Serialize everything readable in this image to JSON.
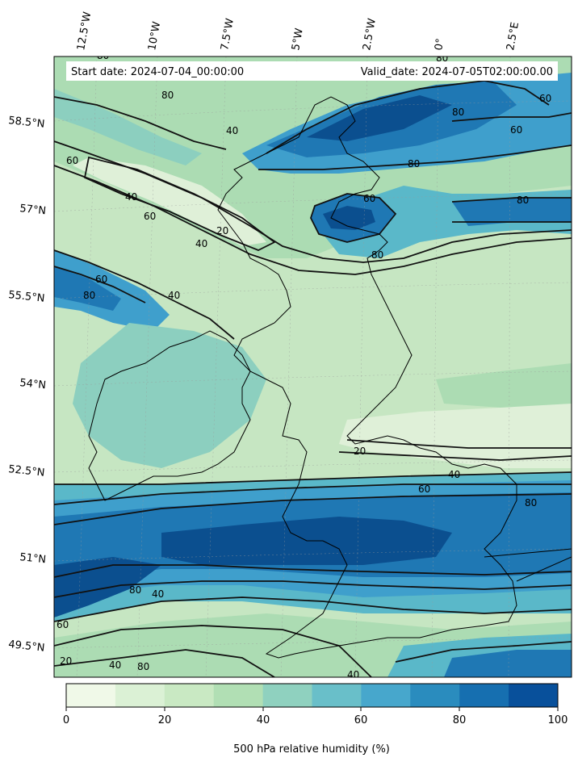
{
  "map": {
    "header": {
      "start_date": "Start date: 2024-07-04_00:00:00",
      "valid_date": "Valid_date: 2024-07-05T02:00:00.00"
    },
    "longitude_labels": [
      "12.5°W",
      "10°W",
      "7.5°W",
      "5°W",
      "2.5°W",
      "0°",
      "2.5°E"
    ],
    "latitude_labels": [
      "58.5°N",
      "57°N",
      "55.5°N",
      "54°N",
      "52.5°N",
      "51°N",
      "49.5°N"
    ],
    "contour_labels": [
      "80",
      "80",
      "80",
      "80",
      "80",
      "80",
      "80",
      "80",
      "80",
      "80",
      "80",
      "60",
      "60",
      "60",
      "60",
      "60",
      "60",
      "60",
      "60",
      "40",
      "40",
      "40",
      "40",
      "40",
      "40",
      "40",
      "40",
      "20",
      "20",
      "20"
    ],
    "field_levels": {
      "very_low": "#dff0d8",
      "low": "#c6e6c2",
      "mid_low": "#acdcb3",
      "mid": "#8ccfbf",
      "mid_high": "#5ab8c9",
      "high": "#3f9fcc",
      "very_high": "#1f78b4",
      "max": "#0b4f8f"
    }
  },
  "colorbar": {
    "title": "500 hPa relative humidity (%)",
    "ticks": [
      "0",
      "20",
      "40",
      "60",
      "80",
      "100"
    ],
    "bins": [
      "#f0f9e8",
      "#dbf1d5",
      "#c9e9c3",
      "#b1dfb4",
      "#8fd1bf",
      "#69bfc9",
      "#47a7cc",
      "#2a8cbe",
      "#166fb0",
      "#08509b"
    ]
  }
}
